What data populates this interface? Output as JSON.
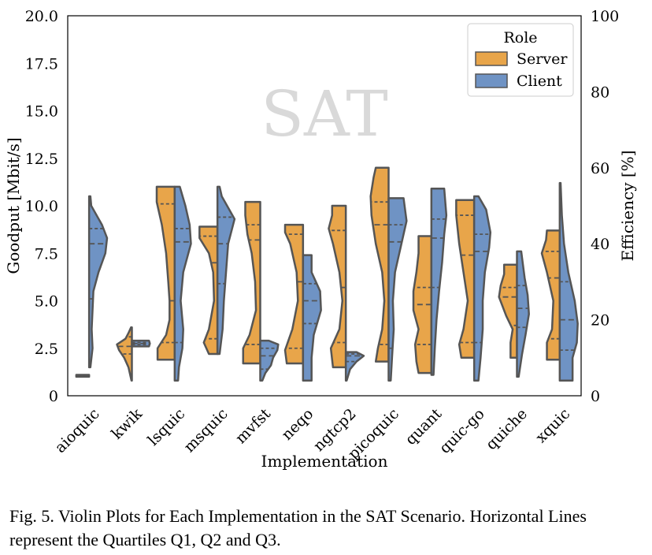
{
  "chart_data": {
    "type": "violin",
    "watermark": "SAT",
    "xlabel": "Implementation",
    "ylabel_left": "Goodput [Mbit/s]",
    "ylabel_right": "Efficiency [%]",
    "ylim_left": [
      0,
      20
    ],
    "ylim_right": [
      0,
      100
    ],
    "yticks_left": [
      "0",
      "2.5",
      "5.0",
      "7.5",
      "10.0",
      "12.5",
      "15.0",
      "17.5",
      "20.0"
    ],
    "yticks_right": [
      "0",
      "20",
      "40",
      "60",
      "80",
      "100"
    ],
    "grid": false,
    "legend": {
      "title": "Role",
      "placement": "top-right",
      "entries": [
        "Server",
        "Client"
      ]
    },
    "colors": {
      "Server": "#E8A54A",
      "Client": "#6F93C4",
      "outline": "#555555"
    },
    "categories": [
      "aioquic",
      "kwik",
      "lsquic",
      "msquic",
      "mvfst",
      "neqo",
      "ngtcp2",
      "picoquic",
      "quant",
      "quic-go",
      "quiche",
      "xquic"
    ],
    "series": [
      {
        "name": "Server",
        "violins": [
          {
            "min": 1.0,
            "max": 1.1,
            "q1": 1.0,
            "q2": 1.05,
            "q3": 1.1,
            "profile": [
              [
                1.0,
                0.3
              ],
              [
                1.1,
                0.3
              ]
            ]
          },
          {
            "min": 0.8,
            "max": 3.6,
            "q1": 2.2,
            "q2": 2.6,
            "q3": 3.1,
            "profile": [
              [
                0.8,
                0.01
              ],
              [
                1.5,
                0.08
              ],
              [
                2.0,
                0.18
              ],
              [
                2.4,
                0.3
              ],
              [
                2.7,
                0.35
              ],
              [
                3.0,
                0.15
              ],
              [
                3.3,
                0.08
              ],
              [
                3.6,
                0.02
              ]
            ]
          },
          {
            "min": 1.9,
            "max": 11.0,
            "q1": 2.8,
            "q2": 5.0,
            "q3": 10.1,
            "profile": [
              [
                1.9,
                0.4
              ],
              [
                2.5,
                0.4
              ],
              [
                3.2,
                0.2
              ],
              [
                4.0,
                0.12
              ],
              [
                5.0,
                0.12
              ],
              [
                6.0,
                0.15
              ],
              [
                7.5,
                0.2
              ],
              [
                9.0,
                0.3
              ],
              [
                10.2,
                0.42
              ],
              [
                11.0,
                0.42
              ]
            ]
          },
          {
            "min": 2.2,
            "max": 8.9,
            "q1": 3.0,
            "q2": 7.0,
            "q3": 8.4,
            "profile": [
              [
                2.2,
                0.2
              ],
              [
                2.8,
                0.32
              ],
              [
                3.5,
                0.2
              ],
              [
                5.0,
                0.08
              ],
              [
                6.5,
                0.1
              ],
              [
                7.5,
                0.2
              ],
              [
                8.3,
                0.42
              ],
              [
                8.9,
                0.42
              ]
            ]
          },
          {
            "min": 1.7,
            "max": 10.2,
            "q1": 2.7,
            "q2": 8.2,
            "q3": 9.0,
            "profile": [
              [
                1.7,
                0.4
              ],
              [
                2.5,
                0.4
              ],
              [
                3.2,
                0.25
              ],
              [
                4.5,
                0.1
              ],
              [
                6.0,
                0.12
              ],
              [
                7.5,
                0.2
              ],
              [
                8.5,
                0.3
              ],
              [
                9.5,
                0.35
              ],
              [
                10.2,
                0.35
              ]
            ]
          },
          {
            "min": 1.7,
            "max": 9.0,
            "q1": 2.5,
            "q2": 6.0,
            "q3": 8.5,
            "profile": [
              [
                1.7,
                0.38
              ],
              [
                2.4,
                0.42
              ],
              [
                3.5,
                0.25
              ],
              [
                5.0,
                0.12
              ],
              [
                6.5,
                0.15
              ],
              [
                8.0,
                0.3
              ],
              [
                8.6,
                0.42
              ],
              [
                9.0,
                0.42
              ]
            ]
          },
          {
            "min": 1.5,
            "max": 10.0,
            "q1": 2.8,
            "q2": 5.7,
            "q3": 8.7,
            "profile": [
              [
                1.5,
                0.3
              ],
              [
                2.5,
                0.35
              ],
              [
                3.5,
                0.15
              ],
              [
                5.0,
                0.08
              ],
              [
                6.5,
                0.15
              ],
              [
                8.0,
                0.3
              ],
              [
                8.8,
                0.4
              ],
              [
                9.5,
                0.32
              ],
              [
                10.0,
                0.32
              ]
            ]
          },
          {
            "min": 1.8,
            "max": 12.0,
            "q1": 2.7,
            "q2": 9.0,
            "q3": 10.2,
            "profile": [
              [
                1.8,
                0.3
              ],
              [
                2.5,
                0.25
              ],
              [
                3.5,
                0.15
              ],
              [
                5.0,
                0.1
              ],
              [
                6.5,
                0.15
              ],
              [
                8.0,
                0.3
              ],
              [
                9.5,
                0.4
              ],
              [
                10.5,
                0.42
              ],
              [
                11.5,
                0.35
              ],
              [
                12.0,
                0.3
              ]
            ]
          },
          {
            "min": 1.2,
            "max": 8.4,
            "q1": 2.7,
            "q2": 4.8,
            "q3": 5.7,
            "profile": [
              [
                1.2,
                0.3
              ],
              [
                1.8,
                0.35
              ],
              [
                2.7,
                0.38
              ],
              [
                3.5,
                0.3
              ],
              [
                4.5,
                0.42
              ],
              [
                5.5,
                0.42
              ],
              [
                6.5,
                0.35
              ],
              [
                7.5,
                0.3
              ],
              [
                8.4,
                0.3
              ]
            ]
          },
          {
            "min": 2.0,
            "max": 10.3,
            "q1": 2.8,
            "q2": 7.4,
            "q3": 9.5,
            "profile": [
              [
                2.0,
                0.3
              ],
              [
                2.7,
                0.35
              ],
              [
                3.5,
                0.25
              ],
              [
                5.0,
                0.15
              ],
              [
                6.5,
                0.25
              ],
              [
                8.0,
                0.35
              ],
              [
                9.5,
                0.42
              ],
              [
                10.3,
                0.42
              ]
            ]
          },
          {
            "min": 2.0,
            "max": 6.9,
            "q1": 3.7,
            "q2": 5.2,
            "q3": 5.7,
            "profile": [
              [
                2.0,
                0.15
              ],
              [
                2.8,
                0.15
              ],
              [
                3.5,
                0.1
              ],
              [
                4.2,
                0.25
              ],
              [
                5.2,
                0.42
              ],
              [
                5.8,
                0.38
              ],
              [
                6.4,
                0.3
              ],
              [
                6.9,
                0.3
              ]
            ]
          },
          {
            "min": 1.9,
            "max": 8.7,
            "q1": 3.0,
            "q2": 6.2,
            "q3": 7.6,
            "profile": [
              [
                1.9,
                0.3
              ],
              [
                2.8,
                0.3
              ],
              [
                3.5,
                0.18
              ],
              [
                5.0,
                0.15
              ],
              [
                6.5,
                0.3
              ],
              [
                7.5,
                0.42
              ],
              [
                8.2,
                0.32
              ],
              [
                8.7,
                0.3
              ]
            ]
          }
        ]
      },
      {
        "name": "Client",
        "violins": [
          {
            "min": 1.5,
            "max": 10.5,
            "q1": 5.1,
            "q2": 8.0,
            "q3": 8.8,
            "profile": [
              [
                1.5,
                0.03
              ],
              [
                2.5,
                0.08
              ],
              [
                3.5,
                0.06
              ],
              [
                4.5,
                0.08
              ],
              [
                5.5,
                0.1
              ],
              [
                6.5,
                0.22
              ],
              [
                7.5,
                0.38
              ],
              [
                8.3,
                0.42
              ],
              [
                9.0,
                0.3
              ],
              [
                10.0,
                0.05
              ],
              [
                10.5,
                0.03
              ]
            ]
          },
          {
            "min": 2.6,
            "max": 2.9,
            "q1": 2.7,
            "q2": 2.75,
            "q3": 2.8,
            "profile": [
              [
                2.6,
                0.4
              ],
              [
                2.75,
                0.42
              ],
              [
                2.9,
                0.4
              ]
            ]
          },
          {
            "min": 0.8,
            "max": 11.0,
            "q1": 2.8,
            "q2": 8.1,
            "q3": 8.8,
            "profile": [
              [
                0.8,
                0.08
              ],
              [
                1.5,
                0.1
              ],
              [
                2.5,
                0.18
              ],
              [
                3.5,
                0.2
              ],
              [
                5.0,
                0.14
              ],
              [
                6.5,
                0.2
              ],
              [
                8.0,
                0.38
              ],
              [
                9.0,
                0.35
              ],
              [
                10.0,
                0.25
              ],
              [
                11.0,
                0.12
              ]
            ]
          },
          {
            "min": 2.2,
            "max": 11.0,
            "q1": 5.9,
            "q2": 8.0,
            "q3": 9.4,
            "profile": [
              [
                2.2,
                0.05
              ],
              [
                3.5,
                0.12
              ],
              [
                5.0,
                0.15
              ],
              [
                6.5,
                0.2
              ],
              [
                8.0,
                0.25
              ],
              [
                9.3,
                0.4
              ],
              [
                10.5,
                0.1
              ],
              [
                11.0,
                0.05
              ]
            ]
          },
          {
            "min": 0.8,
            "max": 2.9,
            "q1": 1.4,
            "q2": 2.1,
            "q3": 2.5,
            "profile": [
              [
                0.8,
                0.05
              ],
              [
                1.2,
                0.12
              ],
              [
                1.6,
                0.25
              ],
              [
                2.0,
                0.3
              ],
              [
                2.4,
                0.4
              ],
              [
                2.7,
                0.42
              ],
              [
                2.9,
                0.2
              ]
            ]
          },
          {
            "min": 0.8,
            "max": 7.4,
            "q1": 3.8,
            "q2": 5.0,
            "q3": 5.9,
            "profile": [
              [
                0.8,
                0.2
              ],
              [
                2.0,
                0.2
              ],
              [
                3.2,
                0.25
              ],
              [
                4.5,
                0.42
              ],
              [
                5.5,
                0.4
              ],
              [
                6.5,
                0.2
              ],
              [
                7.4,
                0.2
              ]
            ]
          },
          {
            "min": 0.8,
            "max": 2.3,
            "q1": 1.8,
            "q2": 2.1,
            "q3": 2.2,
            "profile": [
              [
                0.8,
                0.02
              ],
              [
                1.4,
                0.1
              ],
              [
                1.8,
                0.25
              ],
              [
                2.1,
                0.42
              ],
              [
                2.3,
                0.25
              ]
            ]
          },
          {
            "min": 0.8,
            "max": 10.4,
            "q1": 2.5,
            "q2": 8.1,
            "q3": 9.0,
            "profile": [
              [
                0.8,
                0.05
              ],
              [
                2.0,
                0.08
              ],
              [
                3.5,
                0.12
              ],
              [
                5.0,
                0.1
              ],
              [
                6.5,
                0.15
              ],
              [
                8.0,
                0.3
              ],
              [
                9.2,
                0.42
              ],
              [
                10.4,
                0.35
              ]
            ]
          },
          {
            "min": 1.1,
            "max": 10.9,
            "q1": 5.7,
            "q2": 8.3,
            "q3": 9.3,
            "profile": [
              [
                1.1,
                0.05
              ],
              [
                2.5,
                0.08
              ],
              [
                4.0,
                0.12
              ],
              [
                5.5,
                0.18
              ],
              [
                7.0,
                0.25
              ],
              [
                8.5,
                0.3
              ],
              [
                9.5,
                0.35
              ],
              [
                10.9,
                0.3
              ]
            ]
          },
          {
            "min": 0.8,
            "max": 10.5,
            "q1": 2.8,
            "q2": 7.6,
            "q3": 8.5,
            "profile": [
              [
                0.8,
                0.1
              ],
              [
                2.0,
                0.15
              ],
              [
                3.5,
                0.2
              ],
              [
                5.0,
                0.2
              ],
              [
                6.5,
                0.25
              ],
              [
                7.8,
                0.35
              ],
              [
                8.6,
                0.38
              ],
              [
                9.8,
                0.28
              ],
              [
                10.5,
                0.1
              ]
            ]
          },
          {
            "min": 1.0,
            "max": 7.6,
            "q1": 3.6,
            "q2": 4.6,
            "q3": 5.8,
            "profile": [
              [
                1.0,
                0.04
              ],
              [
                2.2,
                0.12
              ],
              [
                3.2,
                0.2
              ],
              [
                4.3,
                0.28
              ],
              [
                5.3,
                0.25
              ],
              [
                6.2,
                0.18
              ],
              [
                7.6,
                0.1
              ]
            ]
          },
          {
            "min": 0.8,
            "max": 11.2,
            "q1": 2.4,
            "q2": 4.0,
            "q3": 6.0,
            "profile": [
              [
                0.8,
                0.3
              ],
              [
                2.0,
                0.3
              ],
              [
                2.8,
                0.4
              ],
              [
                3.8,
                0.42
              ],
              [
                5.0,
                0.35
              ],
              [
                6.5,
                0.2
              ],
              [
                8.0,
                0.1
              ],
              [
                9.5,
                0.05
              ],
              [
                11.2,
                0.02
              ]
            ]
          }
        ]
      }
    ]
  },
  "caption": {
    "text": "Fig. 5.  Violin Plots for Each Implementation in the SAT Scenario. Horizontal Lines represent the Quartiles Q1, Q2 and Q3."
  }
}
